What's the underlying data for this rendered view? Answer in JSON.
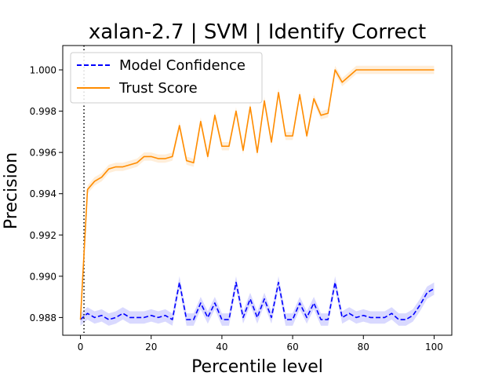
{
  "chart_data": {
    "type": "line",
    "title": "xalan-2.7 | SVM | Identify Correct",
    "xlabel": "Percentile level",
    "ylabel": "Precision",
    "xlim": [
      -5,
      105
    ],
    "ylim": [
      0.98714,
      1.00118
    ],
    "xticks": [
      0,
      20,
      40,
      60,
      80,
      100
    ],
    "xtick_labels": [
      "0",
      "20",
      "40",
      "60",
      "80",
      "100"
    ],
    "yticks": [
      0.988,
      0.99,
      0.992,
      0.994,
      0.996,
      0.998,
      1.0
    ],
    "ytick_labels": [
      "0.988",
      "0.990",
      "0.992",
      "0.994",
      "0.996",
      "0.998",
      "1.000"
    ],
    "vline_x": 1,
    "legend_position": "upper-left",
    "grid": false,
    "x": [
      0,
      2,
      4,
      6,
      8,
      10,
      12,
      14,
      16,
      18,
      20,
      22,
      24,
      26,
      28,
      30,
      32,
      34,
      36,
      38,
      40,
      42,
      44,
      46,
      48,
      50,
      52,
      54,
      56,
      58,
      60,
      62,
      64,
      66,
      68,
      70,
      72,
      74,
      76,
      78,
      80,
      82,
      84,
      86,
      88,
      90,
      92,
      94,
      96,
      98,
      100
    ],
    "series": [
      {
        "name": "Model Confidence",
        "color": "#0000ff",
        "style": "dashed",
        "values": [
          0.9879,
          0.9882,
          0.988,
          0.9881,
          0.9879,
          0.988,
          0.9882,
          0.988,
          0.988,
          0.988,
          0.9881,
          0.988,
          0.9881,
          0.9879,
          0.9897,
          0.9879,
          0.9879,
          0.9887,
          0.988,
          0.9887,
          0.9879,
          0.9879,
          0.9897,
          0.988,
          0.9889,
          0.988,
          0.9889,
          0.988,
          0.9897,
          0.9879,
          0.9879,
          0.9887,
          0.988,
          0.9887,
          0.9879,
          0.9879,
          0.9897,
          0.988,
          0.9882,
          0.988,
          0.9881,
          0.988,
          0.988,
          0.988,
          0.9882,
          0.9879,
          0.9879,
          0.9881,
          0.9886,
          0.9892,
          0.9894
        ],
        "band": 0.0003
      },
      {
        "name": "Trust Score",
        "color": "#ff8c00",
        "style": "solid",
        "values": [
          0.9879,
          0.9942,
          0.9946,
          0.9948,
          0.9952,
          0.9953,
          0.9953,
          0.9954,
          0.9955,
          0.9958,
          0.9958,
          0.9957,
          0.9957,
          0.9958,
          0.9973,
          0.9956,
          0.9955,
          0.9975,
          0.9958,
          0.9978,
          0.9963,
          0.9963,
          0.998,
          0.9961,
          0.9982,
          0.996,
          0.9985,
          0.9965,
          0.9989,
          0.9968,
          0.9968,
          0.9988,
          0.9968,
          0.9986,
          0.9978,
          0.9979,
          1.0,
          0.9994,
          0.9997,
          1.0,
          1.0,
          1.0,
          1.0,
          1.0,
          1.0,
          1.0,
          1.0,
          1.0,
          1.0,
          1.0,
          1.0
        ],
        "band": 0.0002
      }
    ]
  }
}
